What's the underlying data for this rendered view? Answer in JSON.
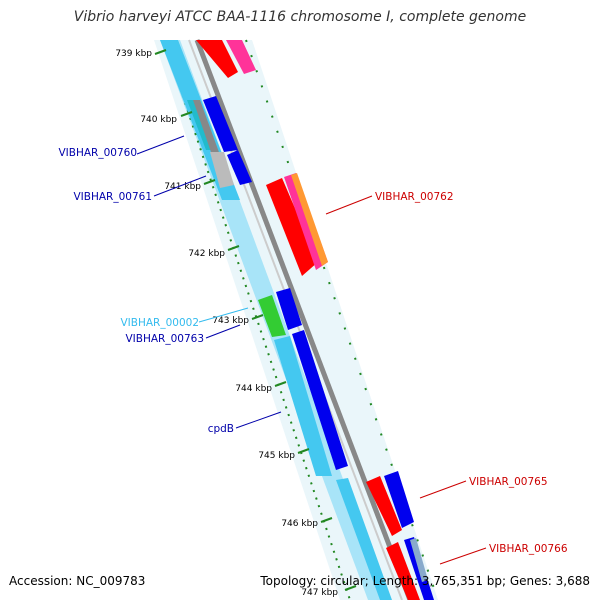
{
  "title": "Vibrio harveyi ATCC BAA-1116 chromosome I, complete genome",
  "accession": "Accession: NC_009783",
  "topology": "Topology: circular; Length: 3,765,351 bp; Genes: 3,688",
  "ticks": [
    {
      "label": "739 kbp"
    },
    {
      "label": "740 kbp"
    },
    {
      "label": "741 kbp"
    },
    {
      "label": "742 kbp"
    },
    {
      "label": "743 kbp"
    },
    {
      "label": "744 kbp"
    },
    {
      "label": "745 kbp"
    },
    {
      "label": "746 kbp"
    },
    {
      "label": "747 kbp"
    }
  ],
  "genes": [
    {
      "label": "VIBHAR_00760",
      "color": "#0000aa"
    },
    {
      "label": "VIBHAR_00761",
      "color": "#0000aa"
    },
    {
      "label": "VIBHAR_00762",
      "color": "#cc0000"
    },
    {
      "label": "VIBHAR_00002",
      "color": "#33bbee"
    },
    {
      "label": "VIBHAR_00763",
      "color": "#0000aa"
    },
    {
      "label": "cpdB",
      "color": "#0000aa"
    },
    {
      "label": "VIBHAR_00765",
      "color": "#cc0000"
    },
    {
      "label": "VIBHAR_00766",
      "color": "#cc0000"
    }
  ],
  "colors": {
    "backbone": "#888888",
    "cds_forward": "#ff0000",
    "cds_reverse": "#0000ee",
    "orf": "#44c8f0",
    "rna": "#33cc33",
    "pseudo": "#bbbbbb",
    "tick": "#228822"
  }
}
